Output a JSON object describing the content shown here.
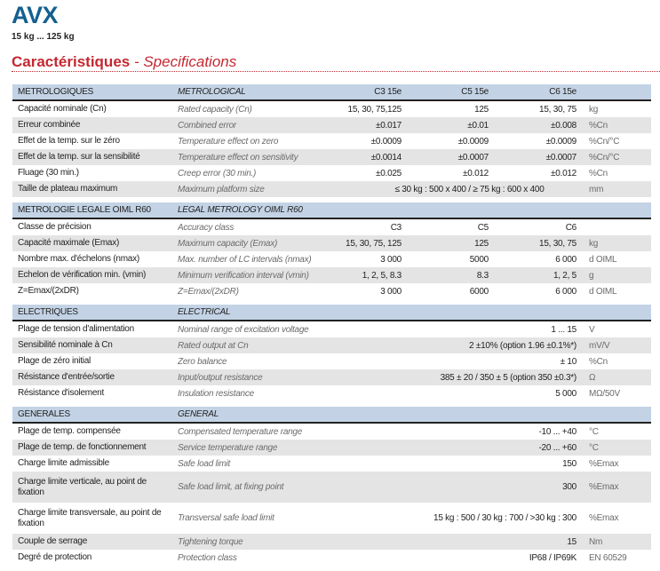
{
  "header": {
    "title": "AVX",
    "subtitle": "15 kg ... 125 kg",
    "section_fr": "Caractéristiques",
    "section_en": " - Specifications"
  },
  "colors": {
    "title": "#15608f",
    "accent": "#c42830",
    "table_header": "#c3d3e5",
    "stripe": "#e4e4e4"
  },
  "sections": [
    {
      "fr": "MÉTROLOGIQUES",
      "en": "METROLOGICAL",
      "cols": [
        "C3 15e",
        "C5 15e",
        "C6 15e"
      ],
      "rows": [
        {
          "fr": "Capacité nominale (Cn)",
          "en": "Rated capacity (Cn)",
          "v": [
            "15, 30, 75,125",
            "125",
            "15, 30, 75"
          ],
          "u": "kg"
        },
        {
          "fr": "Erreur combinée",
          "en": "Combined error",
          "v": [
            "±0.017",
            "±0.01",
            "±0.008"
          ],
          "u": "%Cn"
        },
        {
          "fr": "Effet de la temp. sur le zéro",
          "en": "Temperature effect on zero",
          "v": [
            "±0.0009",
            "±0.0009",
            "±0.0009"
          ],
          "u": "%Cn/°C"
        },
        {
          "fr": "Effet de la temp. sur la sensibilité",
          "en": "Temperature effect on sensitivity",
          "v": [
            "±0.0014",
            "±0.0007",
            "±0.0007"
          ],
          "u": "%Cn/°C"
        },
        {
          "fr": "Fluage (30 min.)",
          "en": "Creep error (30 min.)",
          "v": [
            "±0.025",
            "±0.012",
            "±0.012"
          ],
          "u": "%Cn"
        },
        {
          "fr": "Taille de plateau maximum",
          "en": "Maximum platform size",
          "span": "≤ 30 kg : 500 x 400 / ≥ 75 kg : 600 x 400",
          "center": true,
          "u": "mm"
        }
      ]
    },
    {
      "fr": "MÉTROLOGIE LÉGALE OIML R60",
      "en": "LEGAL METROLOGY OIML R60",
      "cols": [
        "",
        "",
        ""
      ],
      "rows": [
        {
          "fr": "Classe de précision",
          "en": "Accuracy class",
          "v": [
            "C3",
            "C5",
            "C6"
          ],
          "u": ""
        },
        {
          "fr": "Capacité maximale (Emax)",
          "en": "Maximum capacity (Emax)",
          "v": [
            "15, 30, 75, 125",
            "125",
            "15, 30, 75"
          ],
          "u": "kg"
        },
        {
          "fr": "Nombre max. d'échelons (nmax)",
          "en": "Max. number of LC intervals (nmax)",
          "v": [
            "3 000",
            "5000",
            "6 000"
          ],
          "u": "d OIML"
        },
        {
          "fr": "Échelon de vérification min. (vmin)",
          "en": "Minimum verification interval (vmin)",
          "v": [
            "1, 2, 5, 8.3",
            "8.3",
            "1, 2, 5"
          ],
          "u": "g"
        },
        {
          "fr": "Z=Emax/(2xDR)",
          "en": "Z=Emax/(2xDR)",
          "v": [
            "3 000",
            "6000",
            "6 000"
          ],
          "u": "d OIML"
        }
      ]
    },
    {
      "fr": "ÉLECTRIQUES",
      "en": "ELECTRICAL",
      "cols": [
        "",
        "",
        ""
      ],
      "rows": [
        {
          "fr": "Plage de tension d'alimentation",
          "en": "Nominal range of excitation voltage",
          "span": "1 ... 15",
          "u": "V"
        },
        {
          "fr": "Sensibilité nominale à Cn",
          "en": "Rated output at Cn",
          "span": "2 ±10% (option 1.96 ±0.1%*)",
          "u": "mV/V"
        },
        {
          "fr": "Plage de zéro initial",
          "en": "Zero balance",
          "span": "± 10",
          "u": "%Cn"
        },
        {
          "fr": "Résistance d'entrée/sortie",
          "en": "Input/output resistance",
          "span": "385 ± 20 / 350 ± 5 (option 350 ±0.3*)",
          "u": "Ω"
        },
        {
          "fr": "Résistance d'isolement",
          "en": "Insulation resistance",
          "span": "5 000",
          "u": "MΩ/50V"
        }
      ]
    },
    {
      "fr": "GÉNÉRALES",
      "en": "GENERAL",
      "cols": [
        "",
        "",
        ""
      ],
      "rows": [
        {
          "fr": "Plage de temp. compensée",
          "en": "Compensated temperature range",
          "span": "-10 ... +40",
          "u": "°C"
        },
        {
          "fr": "Plage de temp. de fonctionnement",
          "en": "Service temperature range",
          "span": "-20 ... +60",
          "u": "°C"
        },
        {
          "fr": "Charge limite admissible",
          "en": "Safe load limit",
          "span": "150",
          "u": "%Emax"
        },
        {
          "fr": "Charge limite verticale, au point de fixation",
          "en": "Safe load limit, at fixing point",
          "span": "300",
          "u": "%Emax",
          "tall": true
        },
        {
          "fr": "Charge limite transversale, au point de fixation",
          "en": "Transversal safe load limit",
          "span": "15 kg : 500 / 30 kg : 700 / >30 kg : 300",
          "u": "%Emax",
          "tall": true
        },
        {
          "fr": "Couple de serrage",
          "en": "Tightening torque",
          "span": "15",
          "u": "Nm"
        },
        {
          "fr": "Degré de protection",
          "en": "Protection class",
          "span": "IP68 / IP69K",
          "u": "EN 60529"
        }
      ]
    }
  ]
}
